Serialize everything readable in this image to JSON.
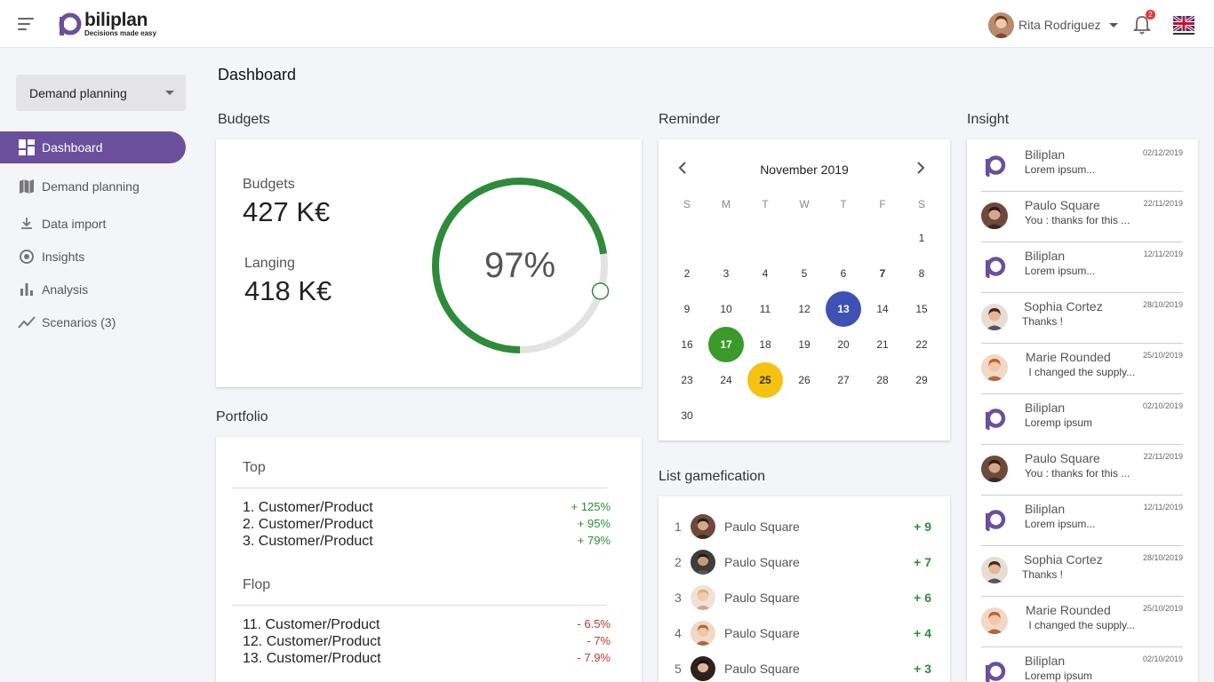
{
  "header": {
    "logo_name": "biliplan",
    "logo_tagline": "Decisions made easy",
    "user_name": "Rita Rodriguez",
    "notification_count": "2"
  },
  "sidebar": {
    "select_value": "Demand planning",
    "items": [
      {
        "label": "Dashboard",
        "icon": "dashboard-icon",
        "active": true
      },
      {
        "label": "Demand planning",
        "icon": "map-icon"
      },
      {
        "label": "Data import",
        "icon": "download-icon"
      },
      {
        "label": "Insights",
        "icon": "insight-icon"
      },
      {
        "label": "Analysis",
        "icon": "bar-chart-icon"
      },
      {
        "label": "Scenarios (3)",
        "icon": "trend-icon"
      }
    ]
  },
  "page": {
    "title": "Dashboard"
  },
  "budgets": {
    "section_title": "Budgets",
    "budget_label": "Budgets",
    "budget_value": "427 K€",
    "landing_label": "Langing",
    "landing_value": "418 K€",
    "percent_label": "97%",
    "percent": 0.97,
    "ring_color": "#2e8b3a"
  },
  "portfolio": {
    "section_title": "Portfolio",
    "top_heading": "Top",
    "top": [
      {
        "name": "1. Customer/Product",
        "value": "+ 125%"
      },
      {
        "name": "2. Customer/Product",
        "value": "+ 95%"
      },
      {
        "name": "3. Customer/Product",
        "value": "+ 79%"
      }
    ],
    "flop_heading": "Flop",
    "flop": [
      {
        "name": "11. Customer/Product",
        "value": "- 6.5%"
      },
      {
        "name": "12. Customer/Product",
        "value": "- 7%"
      },
      {
        "name": "13. Customer/Product",
        "value": "- 7.9%"
      }
    ]
  },
  "reminder": {
    "section_title": "Reminder",
    "month_label": "November 2019",
    "weekdays": [
      "S",
      "M",
      "T",
      "W",
      "T",
      "F",
      "S"
    ],
    "weeks": [
      [
        "",
        "",
        "",
        "",
        "",
        "",
        "1"
      ],
      [
        "2",
        "3",
        "4",
        "5",
        "6",
        "7",
        "8"
      ],
      [
        "9",
        "10",
        "11",
        "12",
        "13",
        "14",
        "15"
      ],
      [
        "16",
        "17",
        "18",
        "19",
        "20",
        "21",
        "22"
      ],
      [
        "23",
        "24",
        "25",
        "26",
        "27",
        "28",
        "29"
      ],
      [
        "30",
        "",
        "",
        "",
        "",
        "",
        ""
      ]
    ],
    "highlights": {
      "13": "blue",
      "17": "green",
      "25": "yellow",
      "7": "bold"
    },
    "colors": {
      "blue": "#3f51b5",
      "green": "#3a9a2a",
      "yellow": "#f5c211"
    }
  },
  "gamification": {
    "section_title": "List gamefication",
    "rows": [
      {
        "rank": "1",
        "name": "Paulo Square",
        "score": "+ 9",
        "avatar": "man-dark"
      },
      {
        "rank": "2",
        "name": "Paulo Square",
        "score": "+ 7",
        "avatar": "man-beard"
      },
      {
        "rank": "3",
        "name": "Paulo Square",
        "score": "+ 6",
        "avatar": "woman-blonde"
      },
      {
        "rank": "4",
        "name": "Paulo Square",
        "score": "+ 4",
        "avatar": "woman-red"
      },
      {
        "rank": "5",
        "name": "Paulo Square",
        "score": "+ 3",
        "avatar": "woman-dark"
      }
    ]
  },
  "insight": {
    "section_title": "Insight",
    "items": [
      {
        "name": "Biliplan",
        "message": "Lorem ipsum...",
        "date": "02/12/2019",
        "avatar": "biliplan-logo"
      },
      {
        "name": "Paulo Square",
        "message": "You : thanks for this ...",
        "date": "22/11/2019",
        "avatar": "man-dark"
      },
      {
        "name": "Biliplan",
        "message": "Lorem ipsum...",
        "date": "12/11/2019",
        "avatar": "biliplan-logo"
      },
      {
        "name": "Sophia Cortez",
        "message": "Thanks !",
        "date": "28/10/2019",
        "avatar": "man-light"
      },
      {
        "name": "Marie Rounded",
        "message": " I changed the supply...",
        "date": "25/10/2019",
        "avatar": "woman-red"
      },
      {
        "name": "Biliplan",
        "message": "Loremp ipsum",
        "date": "02/10/2019",
        "avatar": "biliplan-logo"
      },
      {
        "name": "Paulo Square",
        "message": "You : thanks for this ...",
        "date": "22/11/2019",
        "avatar": "man-dark"
      },
      {
        "name": "Biliplan",
        "message": "Lorem ipsum...",
        "date": "12/11/2019",
        "avatar": "biliplan-logo"
      },
      {
        "name": "Sophia Cortez",
        "message": "Thanks !",
        "date": "28/10/2019",
        "avatar": "man-light"
      },
      {
        "name": "Marie Rounded",
        "message": " I changed the supply...",
        "date": "25/10/2019",
        "avatar": "woman-red"
      },
      {
        "name": "Biliplan",
        "message": "Loremp ipsum",
        "date": "02/10/2019",
        "avatar": "biliplan-logo"
      }
    ]
  },
  "colors": {
    "accent": "#6b4f9c",
    "positive": "#2e8b3a",
    "negative": "#c0392b"
  }
}
